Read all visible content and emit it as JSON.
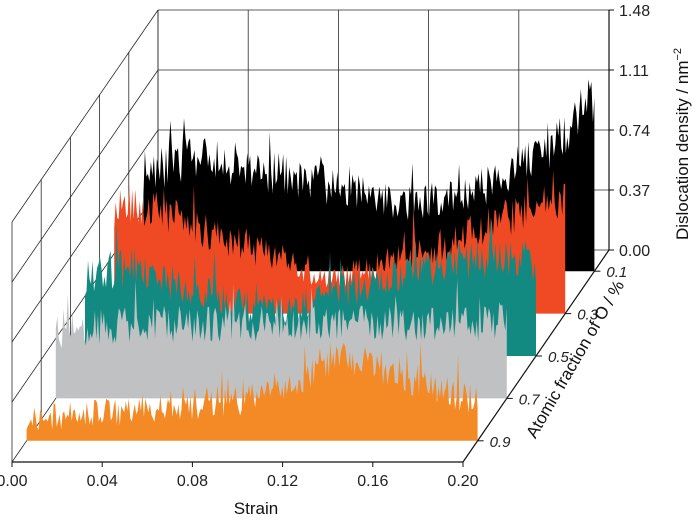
{
  "chart_data": {
    "type": "area",
    "subtype": "3d-waterfall",
    "xlabel": "Strain",
    "ylabel": "Atomic fraction of O / %",
    "zlabel_main": "Dislocation density / nm",
    "zlabel_sup": "−2",
    "x_ticks": [
      "0.00",
      "0.04",
      "0.08",
      "0.12",
      "0.16",
      "0.20"
    ],
    "xlim": [
      0.0,
      0.2
    ],
    "depth_ticks": [
      "0.1",
      "0.3",
      "0.5",
      "0.7",
      "0.9"
    ],
    "z_ticks": [
      "0.00",
      "0.37",
      "0.74",
      "1.11",
      "1.48"
    ],
    "zlim": [
      0.0,
      1.48
    ],
    "grid": true,
    "series": [
      {
        "o_fraction": "0.1",
        "color": "#000000",
        "x": [
          0.0,
          0.02,
          0.04,
          0.06,
          0.08,
          0.1,
          0.12,
          0.14,
          0.16,
          0.18,
          0.2
        ],
        "values": [
          0.6,
          0.7,
          0.66,
          0.6,
          0.54,
          0.46,
          0.42,
          0.46,
          0.58,
          0.78,
          1.05
        ]
      },
      {
        "o_fraction": "0.3",
        "color": "#f04a24",
        "x": [
          0.0,
          0.02,
          0.04,
          0.06,
          0.08,
          0.1,
          0.12,
          0.14,
          0.16,
          0.18,
          0.2
        ],
        "values": [
          0.62,
          0.66,
          0.52,
          0.4,
          0.3,
          0.22,
          0.32,
          0.4,
          0.5,
          0.62,
          0.7
        ]
      },
      {
        "o_fraction": "0.5",
        "color": "#128a82",
        "x": [
          0.0,
          0.02,
          0.04,
          0.06,
          0.08,
          0.1,
          0.12,
          0.14,
          0.16,
          0.18,
          0.2
        ],
        "values": [
          0.48,
          0.55,
          0.45,
          0.36,
          0.28,
          0.32,
          0.42,
          0.5,
          0.56,
          0.62,
          0.58
        ]
      },
      {
        "o_fraction": "0.7",
        "color": "#bfc1c3",
        "x": [
          0.0,
          0.02,
          0.04,
          0.06,
          0.08,
          0.1,
          0.12,
          0.14,
          0.16,
          0.18,
          0.2
        ],
        "values": [
          0.4,
          0.44,
          0.46,
          0.46,
          0.46,
          0.46,
          0.46,
          0.46,
          0.46,
          0.46,
          0.46
        ]
      },
      {
        "o_fraction": "0.9",
        "color": "#f48a26",
        "x": [
          0.0,
          0.02,
          0.04,
          0.06,
          0.08,
          0.1,
          0.12,
          0.14,
          0.16,
          0.18,
          0.2
        ],
        "values": [
          0.12,
          0.16,
          0.18,
          0.2,
          0.22,
          0.26,
          0.38,
          0.54,
          0.44,
          0.34,
          0.24
        ]
      }
    ]
  }
}
